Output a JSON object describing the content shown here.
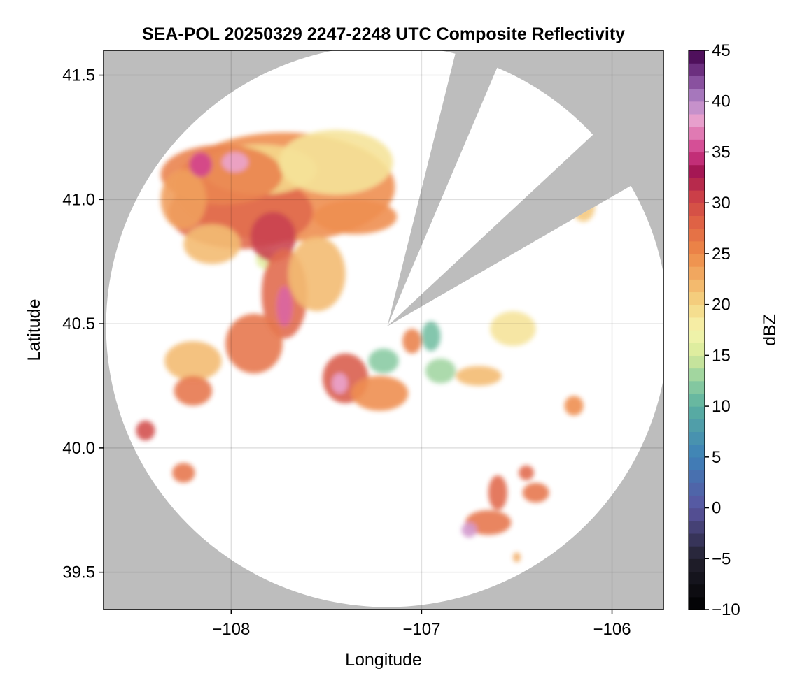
{
  "chart_data": {
    "type": "heatmap",
    "title": "SEA-POL 20250329 2247-2248 UTC Composite Reflectivity",
    "xlabel": "Longitude",
    "ylabel": "Latitude",
    "xlim": [
      -108.67,
      -105.73
    ],
    "ylim": [
      39.35,
      41.6
    ],
    "xticks": [
      -108,
      -107,
      -106
    ],
    "xtick_labels": [
      "−108",
      "−107",
      "−106"
    ],
    "yticks": [
      39.5,
      40.0,
      40.5,
      41.0,
      41.5
    ],
    "ytick_labels": [
      "39.5",
      "40.0",
      "40.5",
      "41.0",
      "41.5"
    ],
    "grid": true,
    "background_color": "#bdbdbd",
    "coverage_color": "#ffffff",
    "radar": {
      "center_lon": -107.18,
      "center_lat": 40.49,
      "range_lat_deg": 1.13,
      "blocked_sectors_deg": [
        [
          14,
          23
        ],
        [
          47,
          60
        ]
      ]
    },
    "colorbar": {
      "label": "dBZ",
      "min": -10,
      "max": 45,
      "step": 1.25,
      "ticks": [
        -10,
        -5,
        0,
        5,
        10,
        15,
        20,
        25,
        30,
        35,
        40,
        45
      ],
      "tick_labels": [
        "−10",
        "−5",
        "0",
        "5",
        "10",
        "15",
        "20",
        "25",
        "30",
        "35",
        "40",
        "45"
      ],
      "colormap": "spectral-dark",
      "stops": [
        {
          "v": -10,
          "c": "#000000"
        },
        {
          "v": -5,
          "c": "#22202e"
        },
        {
          "v": 0,
          "c": "#5a54a0"
        },
        {
          "v": 5,
          "c": "#3d80b8"
        },
        {
          "v": 10,
          "c": "#5bb0a0"
        },
        {
          "v": 12.5,
          "c": "#90cfa0"
        },
        {
          "v": 15,
          "c": "#d6ea9a"
        },
        {
          "v": 17.5,
          "c": "#f6f4ae"
        },
        {
          "v": 20,
          "c": "#f5d685"
        },
        {
          "v": 22.5,
          "c": "#f2b166"
        },
        {
          "v": 25,
          "c": "#ee8a48"
        },
        {
          "v": 28,
          "c": "#e06445"
        },
        {
          "v": 31,
          "c": "#c83a48"
        },
        {
          "v": 33,
          "c": "#a21551"
        },
        {
          "v": 35,
          "c": "#d03a88"
        },
        {
          "v": 38,
          "c": "#eaa0cc"
        },
        {
          "v": 40,
          "c": "#b58acb"
        },
        {
          "v": 42.5,
          "c": "#7a3e90"
        },
        {
          "v": 45,
          "c": "#40004b"
        }
      ]
    },
    "echo_cells": [
      {
        "lon": -107.72,
        "lat": 41.05,
        "rlon": 0.58,
        "rlat": 0.22,
        "dbz": 25
      },
      {
        "lon": -107.95,
        "lat": 40.95,
        "rlon": 0.38,
        "rlat": 0.15,
        "dbz": 28
      },
      {
        "lon": -107.85,
        "lat": 41.12,
        "rlon": 0.3,
        "rlat": 0.1,
        "dbz": 20
      },
      {
        "lon": -108.05,
        "lat": 41.1,
        "rlon": 0.32,
        "rlat": 0.12,
        "dbz": 26
      },
      {
        "lon": -108.25,
        "lat": 41.0,
        "rlon": 0.12,
        "rlat": 0.12,
        "dbz": 24
      },
      {
        "lon": -107.45,
        "lat": 41.15,
        "rlon": 0.3,
        "rlat": 0.13,
        "dbz": 19
      },
      {
        "lon": -107.35,
        "lat": 40.93,
        "rlon": 0.22,
        "rlat": 0.07,
        "dbz": 25
      },
      {
        "lon": -107.82,
        "lat": 40.76,
        "rlon": 0.05,
        "rlat": 0.04,
        "dbz": 16
      },
      {
        "lon": -108.1,
        "lat": 40.82,
        "rlon": 0.15,
        "rlat": 0.08,
        "dbz": 22
      },
      {
        "lon": -107.78,
        "lat": 40.85,
        "rlon": 0.12,
        "rlat": 0.1,
        "dbz": 31
      },
      {
        "lon": -108.16,
        "lat": 41.14,
        "rlon": 0.06,
        "rlat": 0.05,
        "dbz": 35
      },
      {
        "lon": -107.98,
        "lat": 41.15,
        "rlon": 0.07,
        "rlat": 0.04,
        "dbz": 38
      },
      {
        "lon": -107.72,
        "lat": 40.62,
        "rlon": 0.12,
        "rlat": 0.18,
        "dbz": 28
      },
      {
        "lon": -107.88,
        "lat": 40.42,
        "rlon": 0.15,
        "rlat": 0.12,
        "dbz": 27
      },
      {
        "lon": -107.72,
        "lat": 40.57,
        "rlon": 0.04,
        "rlat": 0.08,
        "dbz": 36
      },
      {
        "lon": -107.55,
        "lat": 40.7,
        "rlon": 0.15,
        "rlat": 0.15,
        "dbz": 22
      },
      {
        "lon": -108.2,
        "lat": 40.35,
        "rlon": 0.15,
        "rlat": 0.08,
        "dbz": 22
      },
      {
        "lon": -108.2,
        "lat": 40.23,
        "rlon": 0.1,
        "rlat": 0.06,
        "dbz": 27
      },
      {
        "lon": -108.45,
        "lat": 40.07,
        "rlon": 0.05,
        "rlat": 0.04,
        "dbz": 30
      },
      {
        "lon": -108.25,
        "lat": 39.9,
        "rlon": 0.06,
        "rlat": 0.04,
        "dbz": 27
      },
      {
        "lon": -107.4,
        "lat": 40.28,
        "rlon": 0.12,
        "rlat": 0.1,
        "dbz": 29
      },
      {
        "lon": -107.43,
        "lat": 40.26,
        "rlon": 0.04,
        "rlat": 0.04,
        "dbz": 38
      },
      {
        "lon": -107.22,
        "lat": 40.22,
        "rlon": 0.15,
        "rlat": 0.07,
        "dbz": 25
      },
      {
        "lon": -107.2,
        "lat": 40.35,
        "rlon": 0.08,
        "rlat": 0.05,
        "dbz": 12
      },
      {
        "lon": -107.05,
        "lat": 40.43,
        "rlon": 0.05,
        "rlat": 0.05,
        "dbz": 26
      },
      {
        "lon": -106.95,
        "lat": 40.45,
        "rlon": 0.05,
        "rlat": 0.06,
        "dbz": 11
      },
      {
        "lon": -106.9,
        "lat": 40.31,
        "rlon": 0.08,
        "rlat": 0.05,
        "dbz": 13
      },
      {
        "lon": -106.7,
        "lat": 40.29,
        "rlon": 0.12,
        "rlat": 0.04,
        "dbz": 22
      },
      {
        "lon": -106.52,
        "lat": 40.48,
        "rlon": 0.12,
        "rlat": 0.07,
        "dbz": 19
      },
      {
        "lon": -106.15,
        "lat": 40.97,
        "rlon": 0.06,
        "rlat": 0.06,
        "dbz": 21
      },
      {
        "lon": -106.2,
        "lat": 40.17,
        "rlon": 0.05,
        "rlat": 0.04,
        "dbz": 25
      },
      {
        "lon": -106.6,
        "lat": 39.82,
        "rlon": 0.05,
        "rlat": 0.07,
        "dbz": 28
      },
      {
        "lon": -106.65,
        "lat": 39.7,
        "rlon": 0.12,
        "rlat": 0.05,
        "dbz": 27
      },
      {
        "lon": -106.75,
        "lat": 39.67,
        "rlon": 0.04,
        "rlat": 0.03,
        "dbz": 39
      },
      {
        "lon": -106.4,
        "lat": 39.82,
        "rlon": 0.07,
        "rlat": 0.04,
        "dbz": 27
      },
      {
        "lon": -106.45,
        "lat": 39.9,
        "rlon": 0.04,
        "rlat": 0.03,
        "dbz": 28
      },
      {
        "lon": -106.5,
        "lat": 39.56,
        "rlon": 0.02,
        "rlat": 0.02,
        "dbz": 23
      }
    ]
  }
}
